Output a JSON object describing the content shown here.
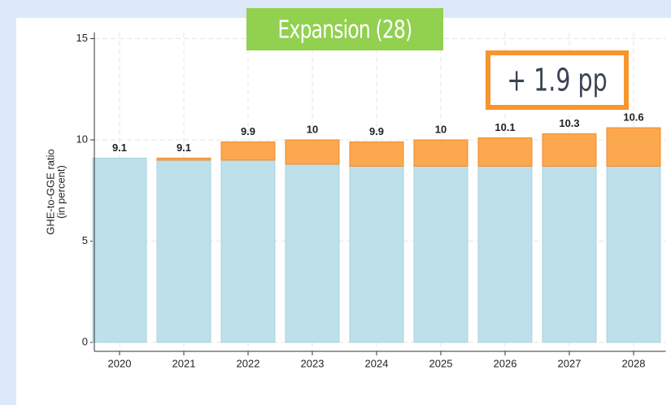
{
  "chart_data": {
    "type": "bar",
    "stacked": true,
    "ylabel": [
      "GHE-to-GGE ratio",
      "(in percent)"
    ],
    "annotations": [
      "Expansion (28)",
      "+ 1.9 pp"
    ],
    "categories": [
      "2020",
      "2021",
      "2022",
      "2023",
      "2024",
      "2025",
      "2026",
      "2027",
      "2028"
    ],
    "series": [
      {
        "color": "#bde0ea",
        "values": [
          9.1,
          9.0,
          9.0,
          8.8,
          8.7,
          8.7,
          8.7,
          8.7,
          8.7
        ]
      },
      {
        "color": "#fca84f",
        "values": [
          0,
          0.1,
          0.9,
          1.2,
          1.2,
          1.3,
          1.4,
          1.6,
          1.9
        ]
      }
    ],
    "totals": [
      9.1,
      9.1,
      9.9,
      10,
      9.9,
      10,
      10.1,
      10.3,
      10.6
    ],
    "ylim": [
      -0.44,
      15.3
    ],
    "yticks": [
      0,
      5,
      10,
      15
    ],
    "grid": true
  }
}
